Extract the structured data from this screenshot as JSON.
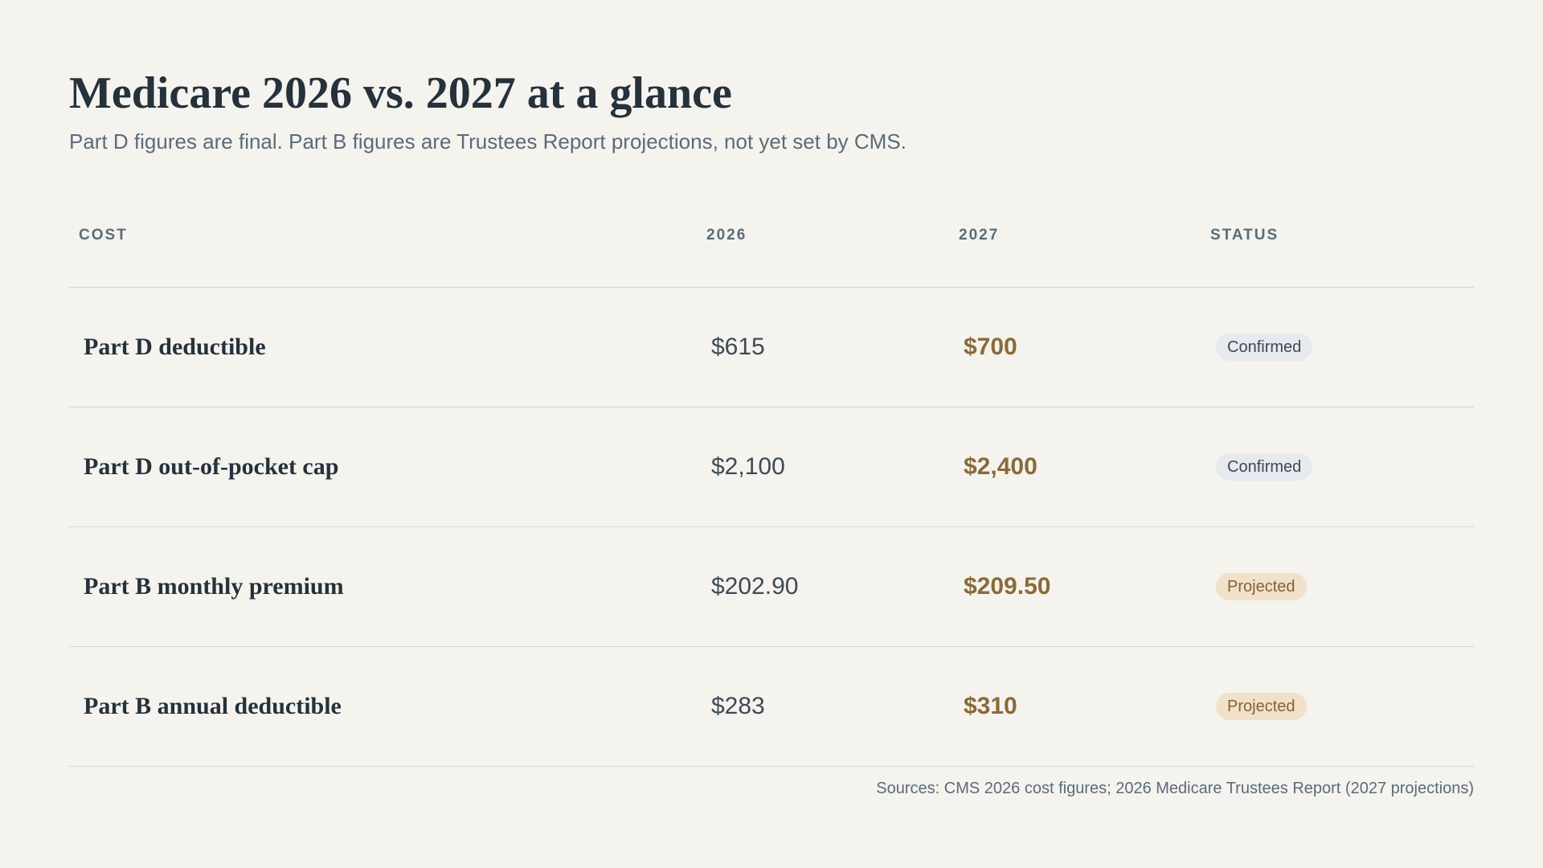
{
  "header": {
    "title": "Medicare 2026 vs. 2027 at a glance",
    "subtitle": "Part D figures are final. Part B figures are Trustees Report projections, not yet set by CMS."
  },
  "table": {
    "columns": [
      "COST",
      "2026",
      "2027",
      "STATUS"
    ],
    "rows": [
      {
        "cost": "Part D deductible",
        "v2026": "$615",
        "v2027": "$700",
        "status": "Confirmed",
        "status_kind": "confirmed"
      },
      {
        "cost": "Part D out-of-pocket cap",
        "v2026": "$2,100",
        "v2027": "$2,400",
        "status": "Confirmed",
        "status_kind": "confirmed"
      },
      {
        "cost": "Part B monthly premium",
        "v2026": "$202.90",
        "v2027": "$209.50",
        "status": "Projected",
        "status_kind": "projected"
      },
      {
        "cost": "Part B annual deductible",
        "v2026": "$283",
        "v2027": "$310",
        "status": "Projected",
        "status_kind": "projected"
      }
    ]
  },
  "footer": {
    "sources": "Sources: CMS 2026 cost figures; 2026 Medicare Trustees Report (2027 projections)"
  },
  "colors": {
    "background": "#f4f3ee",
    "text": "#25313b",
    "accent_2027": "#8a6a3a",
    "confirmed_badge": "#e6e9ed",
    "projected_badge": "#f0e1c8"
  }
}
